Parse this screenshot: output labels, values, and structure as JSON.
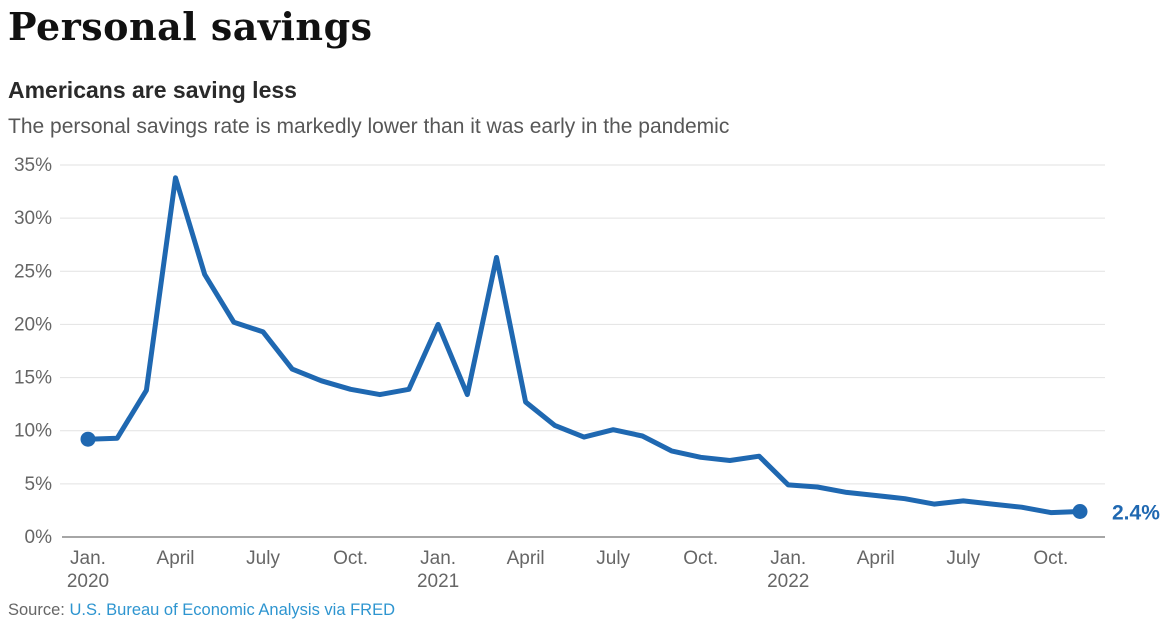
{
  "header": {
    "title": "Personal savings",
    "subtitle": "Americans are saving less",
    "description": "The personal savings rate is markedly lower than it was early in the pandemic"
  },
  "source": {
    "prefix": "Source:",
    "link_text": "U.S. Bureau of Economic Analysis via FRED"
  },
  "colors": {
    "line": "#1f68b1",
    "marker": "#1f68b1",
    "end_label": "#1f68b1",
    "gridline": "#e2e2e2",
    "axis_line": "#a6a6a6",
    "axis_text": "#666666",
    "source_link": "#2e95d0"
  },
  "chart_data": {
    "type": "line",
    "title": "Americans are saving less",
    "subtitle": "The personal savings rate is markedly lower than it was early in the pandemic",
    "unit": "%",
    "xlabel": "",
    "ylabel": "",
    "ylim": [
      0,
      35
    ],
    "grid": true,
    "legend": false,
    "markers": "first and last data points only",
    "y_ticks": [
      0,
      5,
      10,
      15,
      20,
      25,
      30,
      35
    ],
    "y_tick_labels": [
      "0%",
      "5%",
      "10%",
      "15%",
      "20%",
      "25%",
      "30%",
      "35%"
    ],
    "x": [
      "Jan. 2020",
      "Feb. 2020",
      "Mar. 2020",
      "Apr. 2020",
      "May 2020",
      "Jun. 2020",
      "Jul. 2020",
      "Aug. 2020",
      "Sep. 2020",
      "Oct. 2020",
      "Nov. 2020",
      "Dec. 2020",
      "Jan. 2021",
      "Feb. 2021",
      "Mar. 2021",
      "Apr. 2021",
      "May 2021",
      "Jun. 2021",
      "Jul. 2021",
      "Aug. 2021",
      "Sep. 2021",
      "Oct. 2021",
      "Nov. 2021",
      "Dec. 2021",
      "Jan. 2022",
      "Feb. 2022",
      "Mar. 2022",
      "Apr. 2022",
      "May 2022",
      "Jun. 2022",
      "Jul. 2022",
      "Aug. 2022",
      "Sep. 2022",
      "Oct. 2022",
      "Nov. 2022"
    ],
    "values": [
      9.2,
      9.3,
      13.8,
      33.8,
      24.7,
      20.2,
      19.3,
      15.8,
      14.7,
      13.9,
      13.4,
      13.9,
      20.0,
      13.4,
      26.3,
      12.7,
      10.5,
      9.4,
      10.1,
      9.5,
      8.1,
      7.5,
      7.2,
      7.6,
      4.9,
      4.7,
      4.2,
      3.9,
      3.6,
      3.1,
      3.4,
      3.1,
      2.8,
      2.3,
      2.4
    ],
    "x_tick_labels": [
      {
        "month": "Jan.",
        "year": "2020"
      },
      {
        "month": "April"
      },
      {
        "month": "July"
      },
      {
        "month": "Oct."
      },
      {
        "month": "Jan.",
        "year": "2021"
      },
      {
        "month": "April"
      },
      {
        "month": "July"
      },
      {
        "month": "Oct."
      },
      {
        "month": "Jan.",
        "year": "2022"
      },
      {
        "month": "April"
      },
      {
        "month": "July"
      },
      {
        "month": "Oct."
      }
    ],
    "end_point_label": "2.4%"
  }
}
